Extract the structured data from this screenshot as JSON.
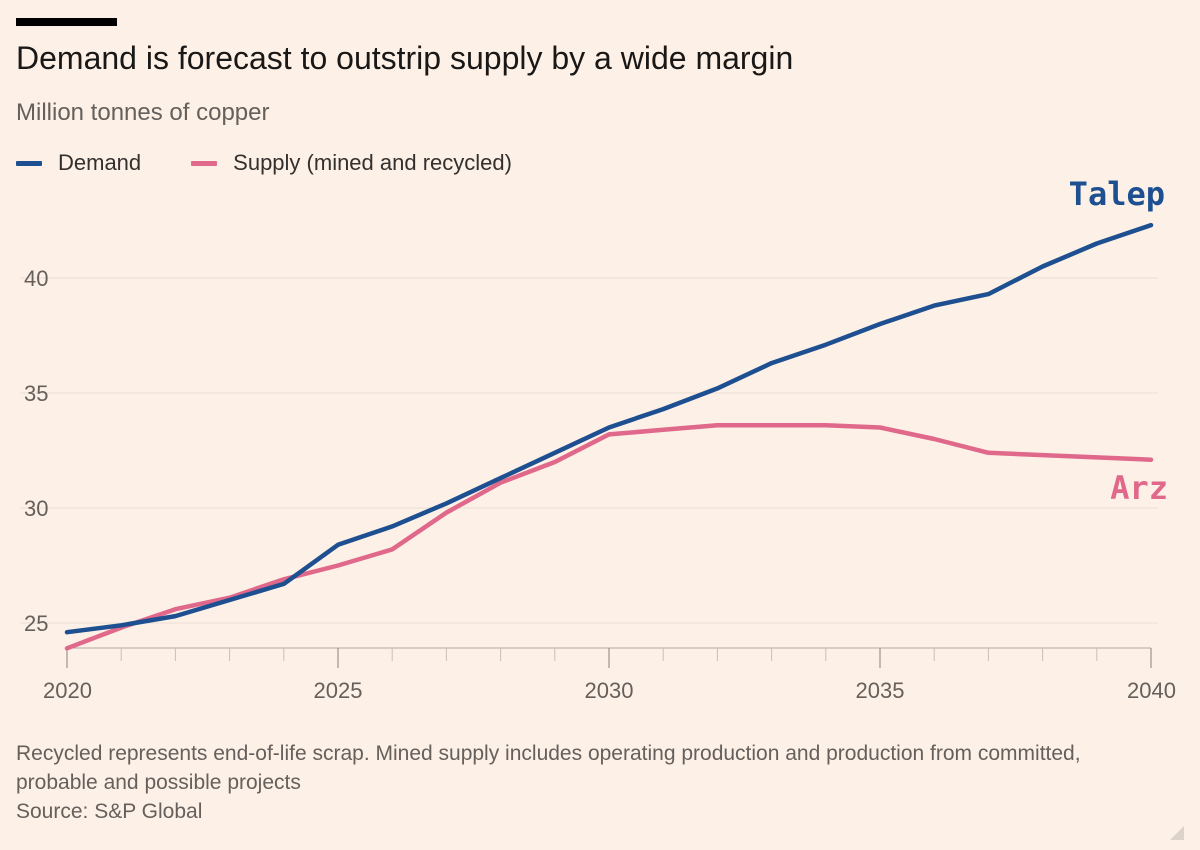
{
  "header": {
    "title": "Demand is forecast to outstrip supply by a wide margin",
    "subtitle": "Million tonnes of copper"
  },
  "legend": {
    "demand": "Demand",
    "supply": "Supply (mined and recycled)"
  },
  "colors": {
    "demand": "#1d4f91",
    "supply": "#e0688a",
    "gridline": "#ece0d6",
    "axis": "#66605c"
  },
  "chart_data": {
    "type": "line",
    "title": "Demand is forecast to outstrip supply by a wide margin",
    "ylabel": "Million tonnes of copper",
    "xlabel": "",
    "x": [
      2020,
      2021,
      2022,
      2023,
      2024,
      2025,
      2026,
      2027,
      2028,
      2029,
      2030,
      2031,
      2032,
      2033,
      2034,
      2035,
      2036,
      2037,
      2038,
      2039,
      2040
    ],
    "xlim": [
      2020,
      2040
    ],
    "ylim": [
      23.5,
      43
    ],
    "yticks": [
      25,
      30,
      35,
      40
    ],
    "xticks": [
      2020,
      2025,
      2030,
      2035,
      2040
    ],
    "legend_position": "top-left",
    "series": [
      {
        "name": "Demand",
        "end_label": "Talep",
        "values": [
          24.6,
          24.9,
          25.3,
          26.0,
          26.7,
          28.4,
          29.2,
          30.2,
          31.3,
          32.4,
          33.5,
          34.3,
          35.2,
          36.3,
          37.1,
          38.0,
          38.8,
          39.3,
          40.5,
          41.5,
          42.3
        ]
      },
      {
        "name": "Supply (mined and recycled)",
        "end_label": "Arz",
        "values": [
          23.9,
          24.8,
          25.6,
          26.1,
          26.9,
          27.5,
          28.2,
          29.8,
          31.1,
          32.0,
          33.2,
          33.4,
          33.6,
          33.6,
          33.6,
          33.5,
          33.0,
          32.4,
          32.3,
          32.2,
          32.1
        ]
      }
    ]
  },
  "footer": {
    "note": "Recycled represents end-of-life scrap. Mined supply includes operating production and production from committed, probable and possible projects",
    "source": "Source: S&P Global"
  }
}
